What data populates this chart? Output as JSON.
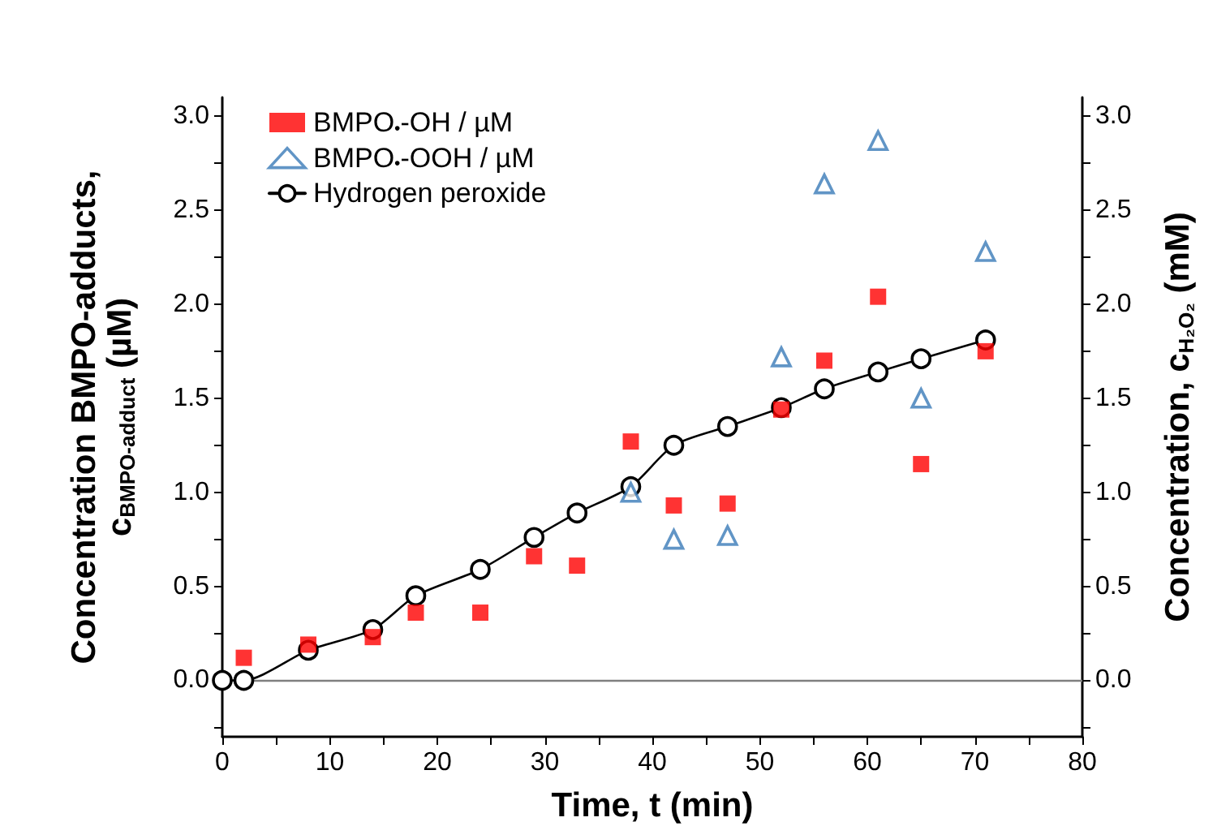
{
  "chart_data": {
    "type": "scatter",
    "x": [
      0,
      2,
      8,
      14,
      18,
      24,
      29,
      33,
      38,
      42,
      47,
      52,
      56,
      61,
      65,
      71
    ],
    "series": [
      {
        "name": "BMPO$_{•}$-OH / µM",
        "color": "#ff0000",
        "marker": "square",
        "x": [
          2,
          8,
          14,
          18,
          24,
          29,
          33,
          38,
          42,
          47,
          52,
          56,
          61,
          65,
          71
        ],
        "values": [
          0.12,
          0.19,
          0.23,
          0.36,
          0.36,
          0.66,
          0.61,
          1.27,
          0.93,
          0.94,
          1.44,
          1.7,
          2.04,
          1.15,
          1.75
        ]
      },
      {
        "name": "BMPO$_{•}$-OOH / µM",
        "color": "#3a7ab8",
        "marker": "triangle",
        "x": [
          38,
          42,
          47,
          52,
          56,
          61,
          65,
          71
        ],
        "values": [
          1.0,
          0.75,
          0.77,
          1.72,
          2.64,
          2.87,
          1.5,
          2.28
        ]
      },
      {
        "name": "Hydrogen peroxide",
        "type": "line",
        "color": "#000000",
        "marker": "circle",
        "line_style": "solid",
        "values": [
          0,
          0,
          0.16,
          0.27,
          0.45,
          0.59,
          0.76,
          0.89,
          1.03,
          1.25,
          1.35,
          1.45,
          1.55,
          1.64,
          1.71,
          1.81
        ]
      }
    ],
    "xlabel": "Time, t (min)",
    "ylabel": "Concentration BMPO-adducts,\nc$_{BMPO-adduct}$ (µM)",
    "y2label": "Concentration, c$_{H₂O₂}$ (mM)",
    "xlim": [
      0,
      80
    ],
    "xticks": [
      0,
      {
        "value": 5,
        "label": null
      },
      10,
      {
        "value": 15,
        "label": null
      },
      20,
      {
        "value": 25,
        "label": null
      },
      30,
      {
        "value": 35,
        "label": null
      },
      40,
      {
        "value": 45,
        "label": null
      },
      50,
      {
        "value": 55,
        "label": null
      },
      60,
      {
        "value": 65,
        "label": null
      },
      70,
      {
        "value": 75,
        "label": null
      },
      80
    ],
    "ylim": [
      -0.3,
      3.1
    ],
    "yticks": [
      {
        "value": -0.25,
        "label": null
      },
      {
        "value": 0,
        "label": "0.0"
      },
      {
        "value": 0.25,
        "label": null
      },
      {
        "value": 0.5,
        "label": "0.5"
      },
      {
        "value": 0.75,
        "label": null
      },
      {
        "value": 1,
        "label": "1.0"
      },
      {
        "value": 1.25,
        "label": null
      },
      {
        "value": 1.5,
        "label": "1.5"
      },
      {
        "value": 1.75,
        "label": null
      },
      {
        "value": 2,
        "label": "2.0"
      },
      {
        "value": 2.25,
        "label": null
      },
      {
        "value": 2.5,
        "label": "2.5"
      },
      {
        "value": 2.75,
        "label": null
      },
      {
        "value": 3,
        "label": "3.0"
      }
    ],
    "y2lim": [
      -0.3,
      3.1
    ],
    "y2ticks": [
      {
        "value": -0.25,
        "label": null
      },
      {
        "value": 0,
        "label": "0.0"
      },
      {
        "value": 0.25,
        "label": null
      },
      {
        "value": 0.5,
        "label": "0.5"
      },
      {
        "value": 0.75,
        "label": null
      },
      {
        "value": 1,
        "label": "1.0"
      },
      {
        "value": 1.25,
        "label": null
      },
      {
        "value": 1.5,
        "label": "1.5"
      },
      {
        "value": 1.75,
        "label": null
      },
      {
        "value": 2,
        "label": "2.0"
      },
      {
        "value": 2.25,
        "label": null
      },
      {
        "value": 2.5,
        "label": "2.5"
      },
      {
        "value": 2.75,
        "label": null
      },
      {
        "value": 3,
        "label": "3.0"
      }
    ],
    "ref_lines": [
      {
        "axis": "y",
        "value": 0,
        "color": "#808080"
      }
    ],
    "legend": "top left",
    "grid": false
  }
}
